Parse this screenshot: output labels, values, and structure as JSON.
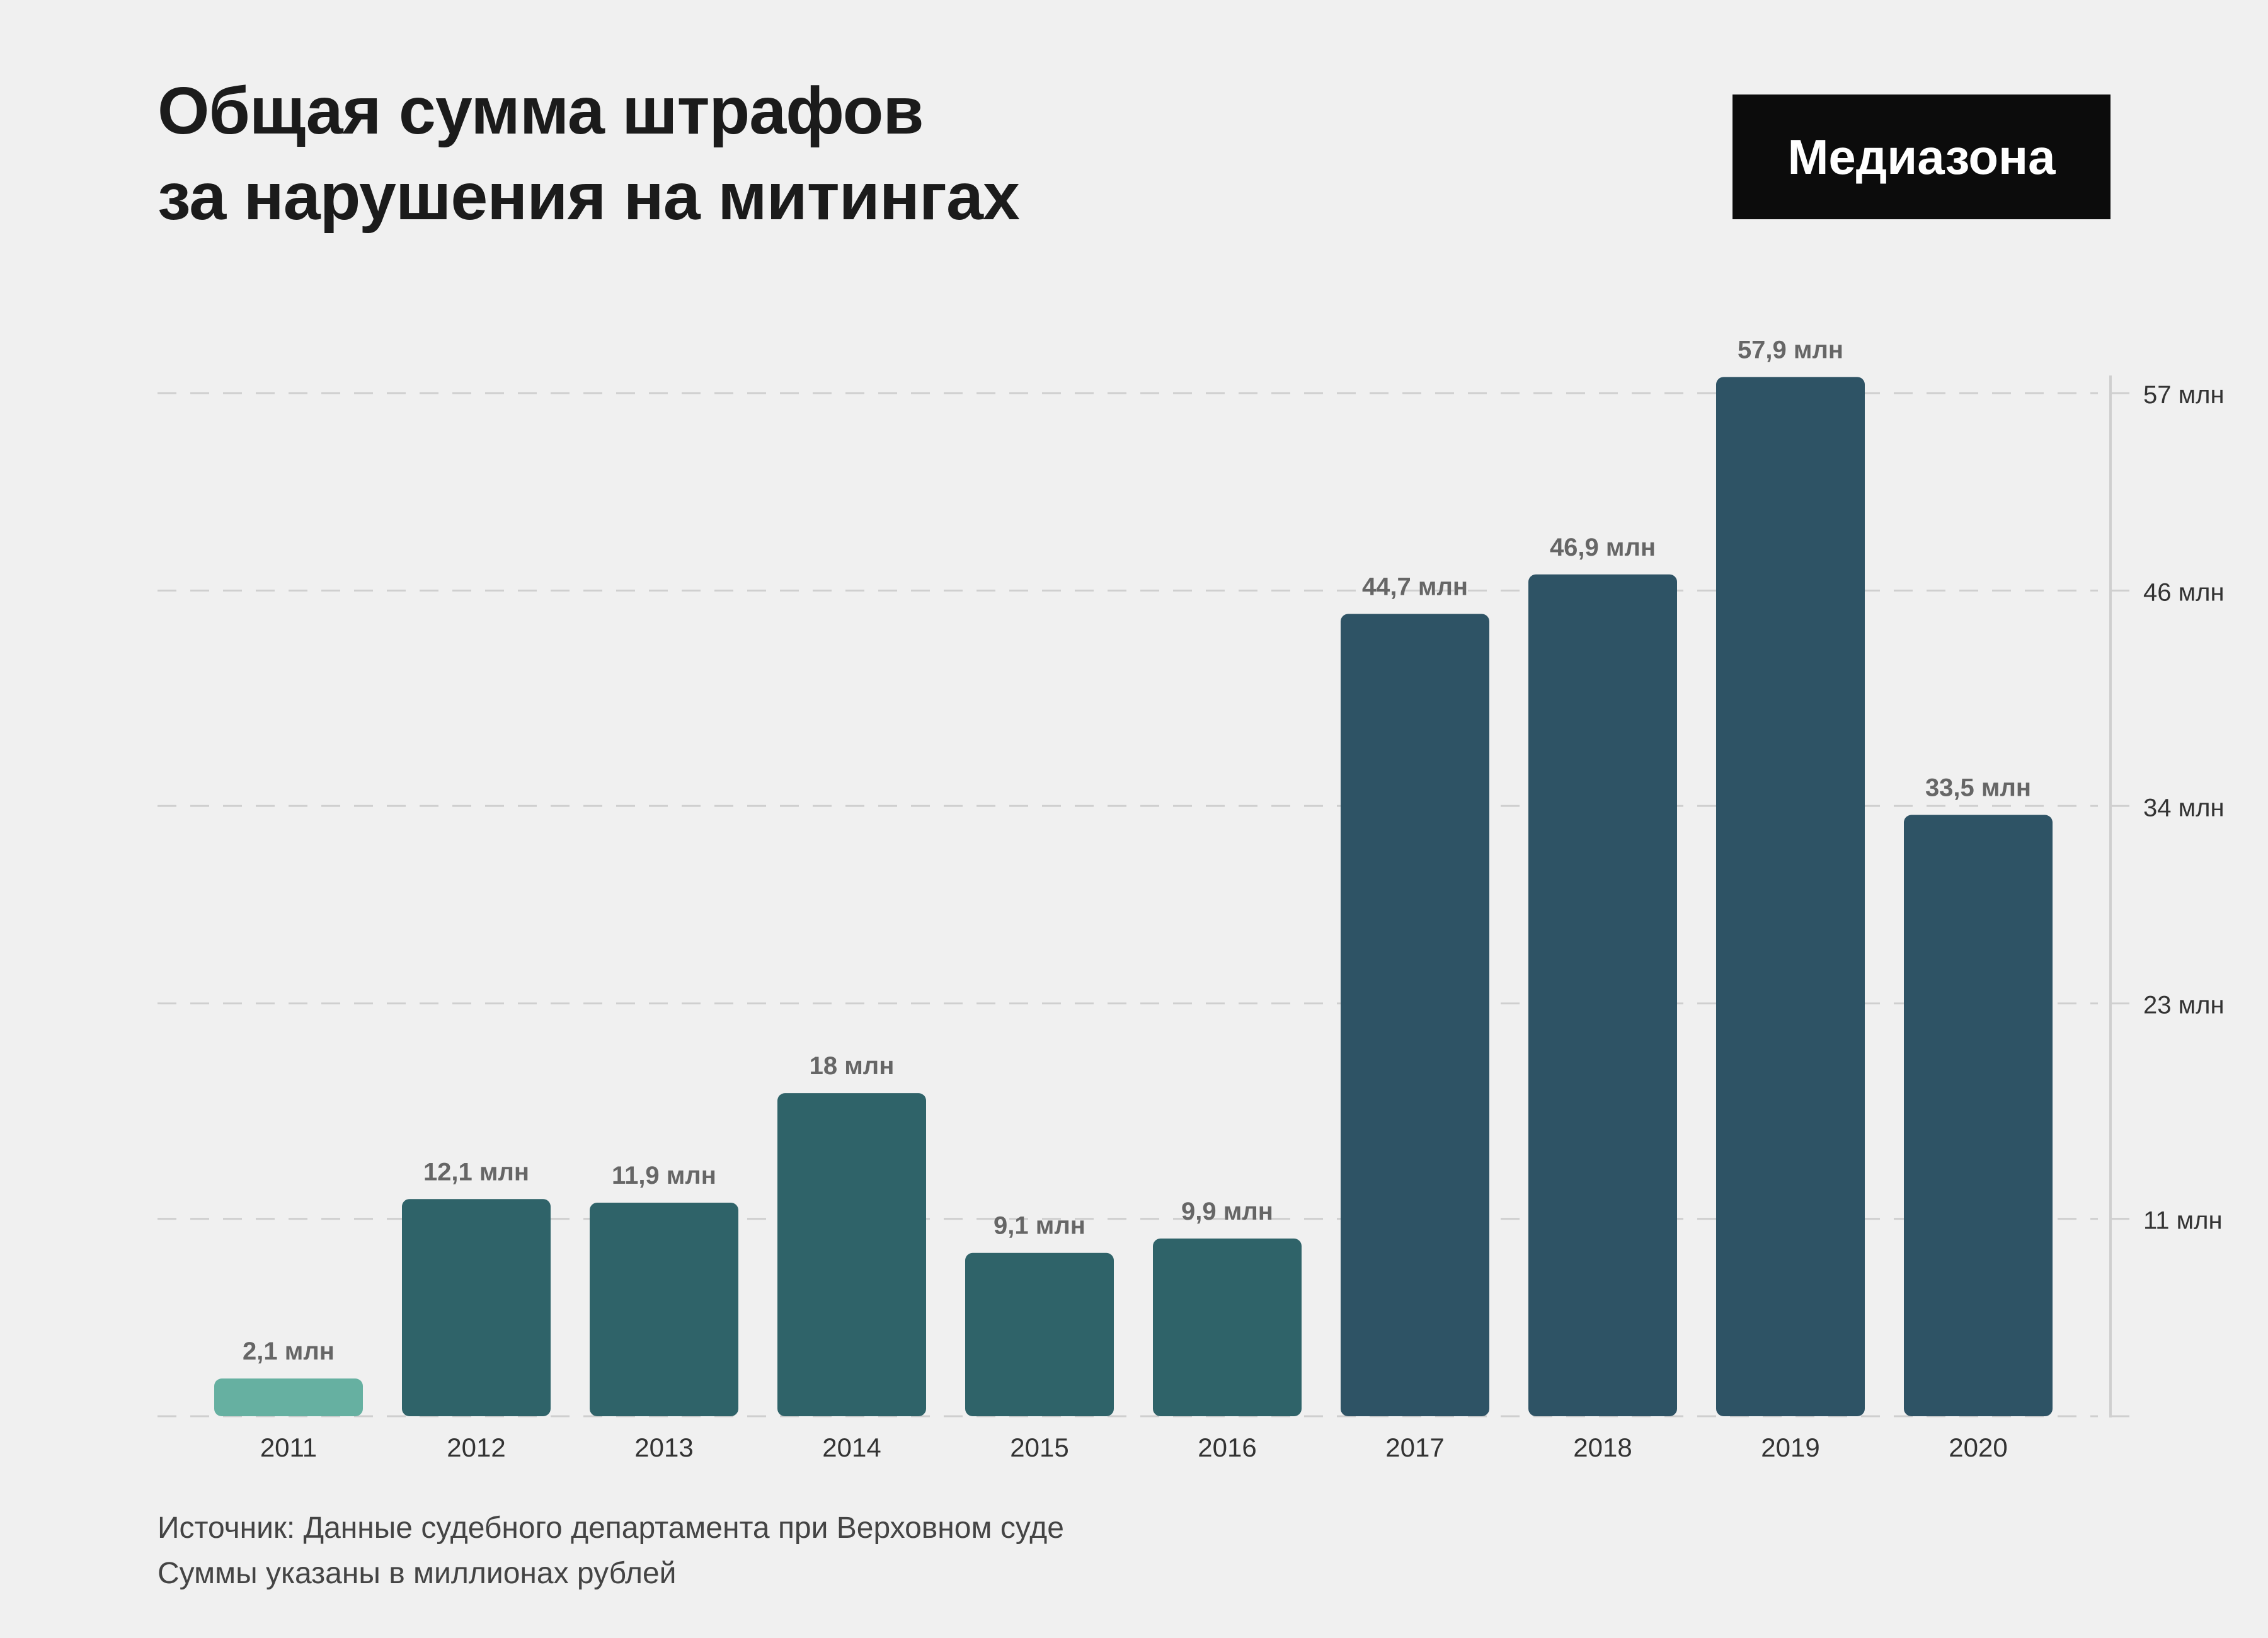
{
  "title": {
    "line1": "Общая сумма штрафов",
    "line2": "за нарушения на митингах"
  },
  "logo": "Медиазона",
  "colors": {
    "background": "#f0f0f0",
    "bar_2011": "#66b0a1",
    "bar_2012_2016": "#2f6369",
    "bar_2017_2020": "#2e5365",
    "value_label": "#666666",
    "axis_label": "#333333",
    "grid": "#cfcfcf"
  },
  "chart_data": {
    "type": "bar",
    "title": "Общая сумма штрафов за нарушения на митингах",
    "categories": [
      "2011",
      "2012",
      "2013",
      "2014",
      "2015",
      "2016",
      "2017",
      "2018",
      "2019",
      "2020"
    ],
    "values": [
      2.1,
      12.1,
      11.9,
      18,
      9.1,
      9.9,
      44.7,
      46.9,
      57.9,
      33.5
    ],
    "value_labels": [
      "2,1 млн",
      "12,1 млн",
      "11,9 млн",
      "18 млн",
      "9,1 млн",
      "9,9 млн",
      "44,7 млн",
      "46,9 млн",
      "57,9 млн",
      "33,5 млн"
    ],
    "y_ticks": [
      {
        "value": 11,
        "label": "11 млн"
      },
      {
        "value": 23,
        "label": "23 млн"
      },
      {
        "value": 34,
        "label": "34 млн"
      },
      {
        "value": 46,
        "label": "46 млн"
      },
      {
        "value": 57,
        "label": "57 млн"
      }
    ],
    "ylim": [
      0,
      57
    ],
    "xlabel": "",
    "ylabel": "",
    "y_axis_side": "right",
    "grid": true
  },
  "footer": {
    "source": "Источник: Данные судебного департамента при Верховном суде",
    "note": "Суммы указаны в миллионах рублей"
  }
}
